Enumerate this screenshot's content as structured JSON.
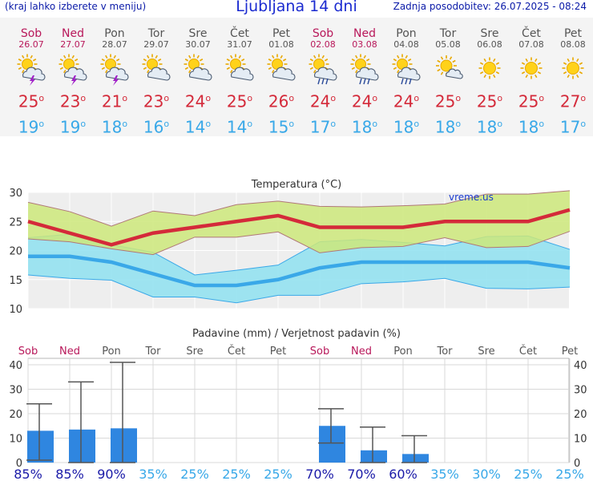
{
  "header": {
    "menu_hint": "(kraj lahko izberete v meniju)",
    "title": "Ljubljana 14 dni",
    "updated": "Zadnja posodobitev: 26.07.2025 - 08:24"
  },
  "days": [
    {
      "name": "Sob",
      "date": "26.07",
      "weekend": true,
      "icon": "sun-cloud-thunder-icon",
      "hi": "25",
      "lo": "19"
    },
    {
      "name": "Ned",
      "date": "27.07",
      "weekend": true,
      "icon": "sun-cloud-thunder-icon",
      "hi": "23",
      "lo": "19"
    },
    {
      "name": "Pon",
      "date": "28.07",
      "weekend": false,
      "icon": "sun-cloud-thunder-icon",
      "hi": "21",
      "lo": "18"
    },
    {
      "name": "Tor",
      "date": "29.07",
      "weekend": false,
      "icon": "sun-cloud-icon",
      "hi": "23",
      "lo": "16"
    },
    {
      "name": "Sre",
      "date": "30.07",
      "weekend": false,
      "icon": "sun-cloud-icon",
      "hi": "24",
      "lo": "14"
    },
    {
      "name": "Čet",
      "date": "31.07",
      "weekend": false,
      "icon": "sun-cloud-icon",
      "hi": "25",
      "lo": "14"
    },
    {
      "name": "Pet",
      "date": "01.08",
      "weekend": false,
      "icon": "sun-cloud-icon",
      "hi": "26",
      "lo": "15"
    },
    {
      "name": "Sob",
      "date": "02.08",
      "weekend": true,
      "icon": "sun-cloud-rain-icon",
      "hi": "24",
      "lo": "17"
    },
    {
      "name": "Ned",
      "date": "03.08",
      "weekend": true,
      "icon": "sun-cloud-rain-icon",
      "hi": "24",
      "lo": "18"
    },
    {
      "name": "Pon",
      "date": "04.08",
      "weekend": false,
      "icon": "sun-cloud-rain-icon",
      "hi": "24",
      "lo": "18"
    },
    {
      "name": "Tor",
      "date": "05.08",
      "weekend": false,
      "icon": "sun-small-cloud-icon",
      "hi": "25",
      "lo": "18"
    },
    {
      "name": "Sre",
      "date": "06.08",
      "weekend": false,
      "icon": "sun-icon",
      "hi": "25",
      "lo": "18"
    },
    {
      "name": "Čet",
      "date": "07.08",
      "weekend": false,
      "icon": "sun-icon",
      "hi": "25",
      "lo": "18"
    },
    {
      "name": "Pet",
      "date": "08.08",
      "weekend": false,
      "icon": "sun-icon",
      "hi": "27",
      "lo": "17"
    }
  ],
  "chart_data": [
    {
      "type": "line",
      "title": "Temperatura (°C)",
      "watermark": "vreme.us",
      "ylim": [
        10,
        30
      ],
      "yticks": [
        "10",
        "15",
        "20",
        "25",
        "30"
      ],
      "grid": true,
      "series": [
        {
          "name": "max",
          "values": [
            25,
            23,
            21,
            23,
            24,
            25,
            26,
            24,
            24,
            24,
            25,
            25,
            25,
            27
          ]
        },
        {
          "name": "max-range-top",
          "values": [
            28.3,
            26.7,
            24.2,
            26.8,
            26,
            27.9,
            28.5,
            27.6,
            27.5,
            27.7,
            28,
            29.7,
            29.7,
            30.3
          ]
        },
        {
          "name": "max-range-bottom",
          "values": [
            22,
            21.5,
            20.3,
            19.3,
            22.3,
            22.3,
            23.2,
            19.6,
            20.5,
            20.7,
            22.2,
            20.5,
            20.7,
            23.3
          ]
        },
        {
          "name": "min",
          "values": [
            19,
            19,
            18,
            16,
            14,
            14,
            15,
            17,
            18,
            18,
            18,
            18,
            18,
            17
          ]
        },
        {
          "name": "min-range-top",
          "values": [
            22.2,
            22.8,
            21,
            19.7,
            15.8,
            16.6,
            17.5,
            21.5,
            21.9,
            21.4,
            20.8,
            22.4,
            22.5,
            20.2
          ]
        },
        {
          "name": "min-range-bottom",
          "values": [
            15.8,
            15.2,
            14.9,
            12,
            12,
            11,
            12.3,
            12.3,
            14.3,
            14.6,
            15.2,
            13.5,
            13.4,
            13.7
          ]
        }
      ]
    },
    {
      "type": "bar",
      "title": "Padavine (mm) / Verjetnost padavin (%)",
      "ylim": [
        0,
        40
      ],
      "yticks": [
        "0",
        "10",
        "20",
        "30",
        "40"
      ],
      "categories": [
        "Sob",
        "Ned",
        "Pon",
        "Tor",
        "Sre",
        "Čet",
        "Pet",
        "Sob",
        "Ned",
        "Pon",
        "Tor",
        "Sre",
        "Čet",
        "Pet"
      ],
      "values": [
        13,
        13.5,
        14,
        0,
        0,
        0,
        0,
        15,
        5,
        3.5,
        0,
        0,
        0,
        0
      ],
      "error_low": [
        1,
        0,
        0,
        null,
        null,
        null,
        null,
        8,
        0,
        0,
        null,
        null,
        null,
        null
      ],
      "error_high": [
        24,
        33,
        41,
        null,
        null,
        null,
        null,
        22,
        14.5,
        11,
        null,
        null,
        null,
        null
      ],
      "probabilities": [
        "85%",
        "85%",
        "90%",
        "35%",
        "25%",
        "25%",
        "25%",
        "70%",
        "70%",
        "60%",
        "35%",
        "30%",
        "25%",
        "25%"
      ]
    }
  ],
  "colors": {
    "max_line": "#d42a3a",
    "min_line": "#3aa8e8",
    "max_band": "#cde87a",
    "min_band": "#8ee0f0",
    "overlap_band": "#7ccd6a",
    "precip_bar": "#2f86e0",
    "prob_high": "#1a1aa8",
    "prob_low": "#38a8e8",
    "weekend": "#b8185a"
  }
}
